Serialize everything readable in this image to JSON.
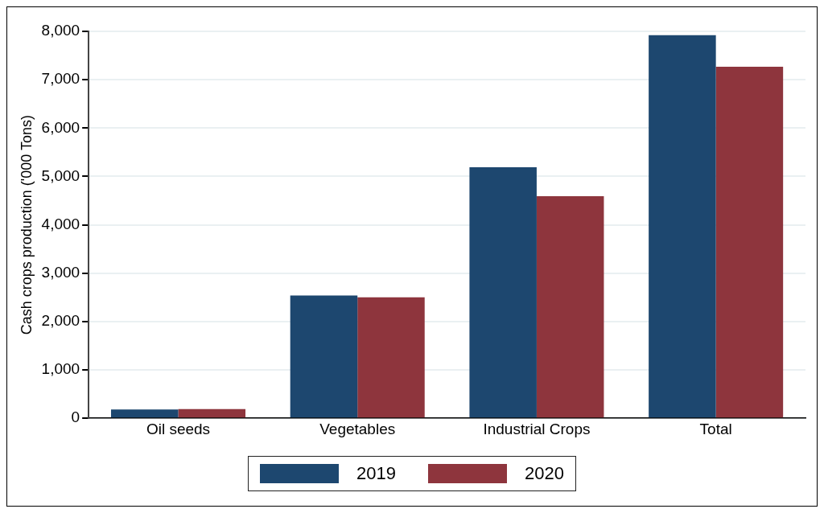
{
  "chart_data": {
    "type": "bar",
    "ylabel": "Cash crops production ('000 Tons)",
    "categories": [
      "Oil seeds",
      "Vegetables",
      "Industrial Crops",
      "Total"
    ],
    "series": [
      {
        "name": "2019",
        "color": "#1d476f",
        "values": [
          180,
          2540,
          5190,
          7920
        ]
      },
      {
        "name": "2020",
        "color": "#8e353d",
        "values": [
          190,
          2500,
          4590,
          7270
        ]
      }
    ],
    "ylim": [
      0,
      8000
    ],
    "yticks": [
      {
        "value": 0,
        "label": "0"
      },
      {
        "value": 1000,
        "label": "1,000"
      },
      {
        "value": 2000,
        "label": "2,000"
      },
      {
        "value": 3000,
        "label": "3,000"
      },
      {
        "value": 4000,
        "label": "4,000"
      },
      {
        "value": 5000,
        "label": "5,000"
      },
      {
        "value": 6000,
        "label": "6,000"
      },
      {
        "value": 7000,
        "label": "7,000"
      },
      {
        "value": 8000,
        "label": "8,000"
      }
    ],
    "grid": "y",
    "legend": "bottom"
  }
}
